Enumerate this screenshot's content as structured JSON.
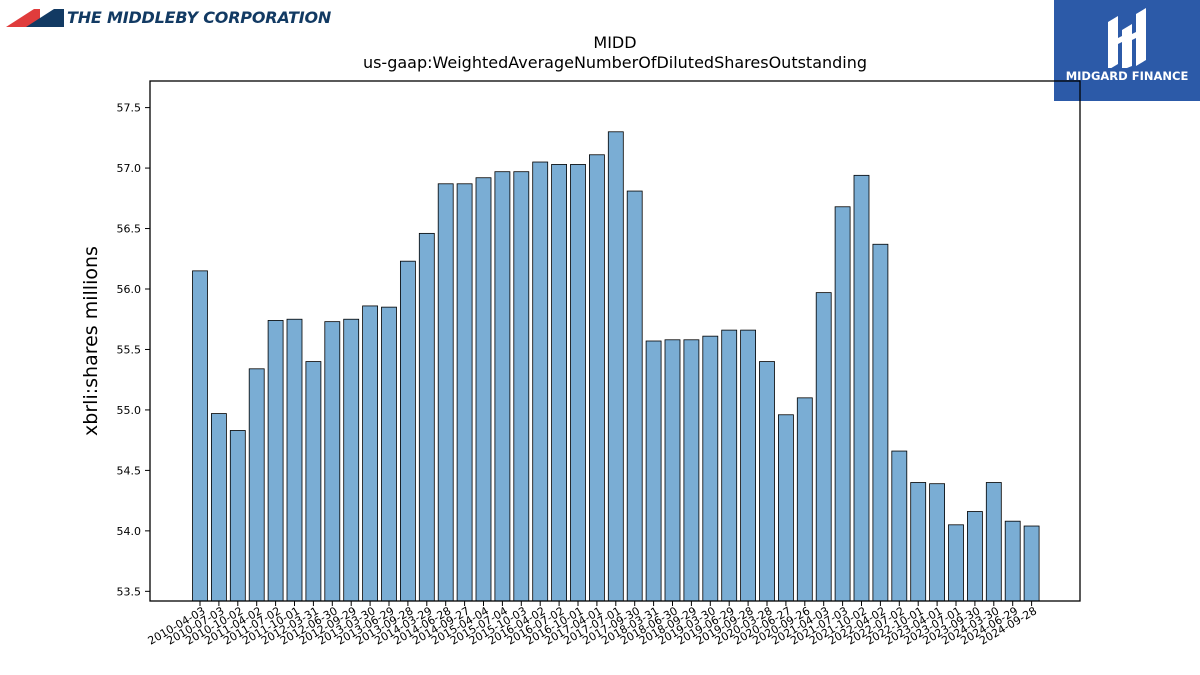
{
  "header": {
    "company_logo_text": "THE MIDDLEBY CORPORATION",
    "brand_name": "MIDGARD FINANCE"
  },
  "colors": {
    "bar_fill": "#7aadd4",
    "bar_edge": "#000000",
    "brand_box": "#2c5aa8",
    "logo_red": "#e03c3c",
    "logo_navy": "#123a63"
  },
  "chart_data": {
    "type": "bar",
    "title": "MIDD",
    "subtitle": "us-gaap:WeightedAverageNumberOfDilutedSharesOutstanding",
    "xlabel": "",
    "ylabel": "xbrli:shares millions",
    "ylim": [
      53.42,
      57.72
    ],
    "yticks": [
      53.5,
      54.0,
      54.5,
      55.0,
      55.5,
      56.0,
      56.5,
      57.0,
      57.5
    ],
    "grid": false,
    "categories": [
      "2010-04-03",
      "2010-07-03",
      "2010-10-02",
      "2011-04-02",
      "2011-07-02",
      "2011-10-01",
      "2012-03-31",
      "2012-06-30",
      "2012-09-29",
      "2013-03-30",
      "2013-06-29",
      "2013-09-28",
      "2014-03-29",
      "2014-06-28",
      "2014-09-27",
      "2015-04-04",
      "2015-07-04",
      "2015-10-03",
      "2016-04-02",
      "2016-07-02",
      "2016-10-01",
      "2017-04-01",
      "2017-07-01",
      "2017-09-30",
      "2018-03-31",
      "2018-06-30",
      "2018-09-29",
      "2019-03-30",
      "2019-06-29",
      "2019-09-28",
      "2020-03-28",
      "2020-06-27",
      "2020-09-26",
      "2021-04-03",
      "2021-07-03",
      "2021-10-02",
      "2022-04-02",
      "2022-07-02",
      "2022-10-01",
      "2023-04-01",
      "2023-07-01",
      "2023-09-30",
      "2024-03-30",
      "2024-06-29",
      "2024-09-28"
    ],
    "values": [
      56.15,
      54.97,
      54.83,
      55.34,
      55.74,
      55.75,
      55.4,
      55.73,
      55.75,
      55.86,
      55.85,
      56.23,
      56.46,
      56.87,
      56.87,
      56.92,
      56.97,
      56.97,
      57.05,
      57.03,
      57.03,
      57.11,
      57.3,
      56.81,
      55.57,
      55.58,
      55.58,
      55.61,
      55.66,
      55.66,
      55.4,
      54.96,
      55.1,
      55.97,
      56.68,
      56.94,
      56.37,
      54.66,
      54.4,
      54.39,
      54.05,
      54.16,
      54.4,
      54.08,
      54.04
    ]
  }
}
